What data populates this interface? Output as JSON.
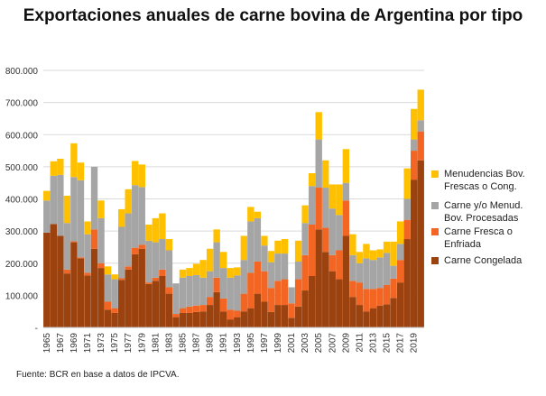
{
  "chart_data": {
    "type": "bar",
    "stacked": true,
    "title": "Exportaciones anuales de carne bovina de Argentina por tipo",
    "xlabel": "",
    "ylabel": "",
    "ylim": [
      0,
      800000
    ],
    "y_tick_labels": [
      "-",
      "100.000",
      "200.000",
      "300.000",
      "400.000",
      "500.000",
      "600.000",
      "700.000",
      "800.000"
    ],
    "y_ticks": [
      0,
      100000,
      200000,
      300000,
      400000,
      500000,
      600000,
      700000,
      800000
    ],
    "grid": true,
    "legend_position": "right",
    "categories": [
      1965,
      1966,
      1967,
      1968,
      1969,
      1970,
      1971,
      1972,
      1973,
      1974,
      1975,
      1976,
      1977,
      1978,
      1979,
      1980,
      1981,
      1982,
      1983,
      1984,
      1985,
      1986,
      1987,
      1988,
      1989,
      1990,
      1991,
      1992,
      1993,
      1994,
      1995,
      1996,
      1997,
      1998,
      1999,
      2000,
      2001,
      2002,
      2003,
      2004,
      2005,
      2006,
      2007,
      2008,
      2009,
      2010,
      2011,
      2012,
      2013,
      2014,
      2015,
      2016,
      2017,
      2018,
      2019,
      2020
    ],
    "x_tick_labels": [
      "1965",
      "1967",
      "1969",
      "1971",
      "1973",
      "1975",
      "1977",
      "1979",
      "1981",
      "1983",
      "1985",
      "1987",
      "1989",
      "1991",
      "1993",
      "1995",
      "1997",
      "1999",
      "2001",
      "2003",
      "2005",
      "2007",
      "2009",
      "2011",
      "2013",
      "2015",
      "2017",
      "2019"
    ],
    "series": [
      {
        "name": "Carne Congelada",
        "color": "#9c420f",
        "values": [
          295000,
          322000,
          285000,
          168000,
          265000,
          215000,
          162000,
          245000,
          185000,
          55000,
          45000,
          148000,
          180000,
          228000,
          245000,
          135000,
          145000,
          160000,
          105000,
          32000,
          45000,
          45000,
          48000,
          50000,
          70000,
          110000,
          50000,
          25000,
          32000,
          50000,
          60000,
          105000,
          80000,
          48000,
          70000,
          70000,
          30000,
          65000,
          115000,
          160000,
          305000,
          235000,
          175000,
          150000,
          285000,
          95000,
          70000,
          50000,
          60000,
          68000,
          72000,
          92000,
          140000,
          275000,
          460000,
          520000
        ]
      },
      {
        "name": "Carne Fresca o Enfriada",
        "color": "#f26522",
        "values": [
          0,
          0,
          0,
          12000,
          3000,
          3000,
          8000,
          60000,
          15000,
          25000,
          15000,
          5000,
          10000,
          20000,
          12000,
          5000,
          10000,
          20000,
          20000,
          10000,
          15000,
          20000,
          20000,
          20000,
          25000,
          45000,
          40000,
          30000,
          20000,
          55000,
          110000,
          100000,
          95000,
          75000,
          75000,
          80000,
          45000,
          85000,
          110000,
          160000,
          130000,
          75000,
          50000,
          90000,
          110000,
          50000,
          70000,
          70000,
          60000,
          55000,
          60000,
          60000,
          70000,
          60000,
          90000,
          90000
        ]
      },
      {
        "name": "Carne y/o Menud. Bov. Procesadas",
        "color": "#a5a5a5",
        "values": [
          100000,
          150000,
          190000,
          145000,
          200000,
          240000,
          120000,
          195000,
          140000,
          85000,
          90000,
          160000,
          165000,
          195000,
          180000,
          130000,
          110000,
          95000,
          115000,
          95000,
          95000,
          95000,
          95000,
          85000,
          80000,
          110000,
          95000,
          100000,
          110000,
          105000,
          160000,
          135000,
          80000,
          80000,
          85000,
          80000,
          50000,
          55000,
          100000,
          120000,
          150000,
          125000,
          145000,
          110000,
          55000,
          80000,
          60000,
          95000,
          90000,
          95000,
          100000,
          40000,
          50000,
          65000,
          35000,
          35000
        ]
      },
      {
        "name": "Menudencias Bov. Frescas o Cong.",
        "color": "#ffc000",
        "values": [
          30000,
          45000,
          50000,
          85000,
          105000,
          55000,
          40000,
          0,
          55000,
          25000,
          15000,
          55000,
          75000,
          75000,
          70000,
          50000,
          75000,
          80000,
          35000,
          0,
          25000,
          25000,
          35000,
          55000,
          70000,
          40000,
          50000,
          30000,
          25000,
          75000,
          45000,
          20000,
          30000,
          35000,
          40000,
          45000,
          0,
          65000,
          55000,
          40000,
          85000,
          85000,
          75000,
          95000,
          105000,
          65000,
          35000,
          45000,
          30000,
          25000,
          35000,
          75000,
          70000,
          95000,
          95000,
          95000
        ]
      }
    ]
  },
  "source_note": "Fuente: BCR en base a datos de IPCVA."
}
